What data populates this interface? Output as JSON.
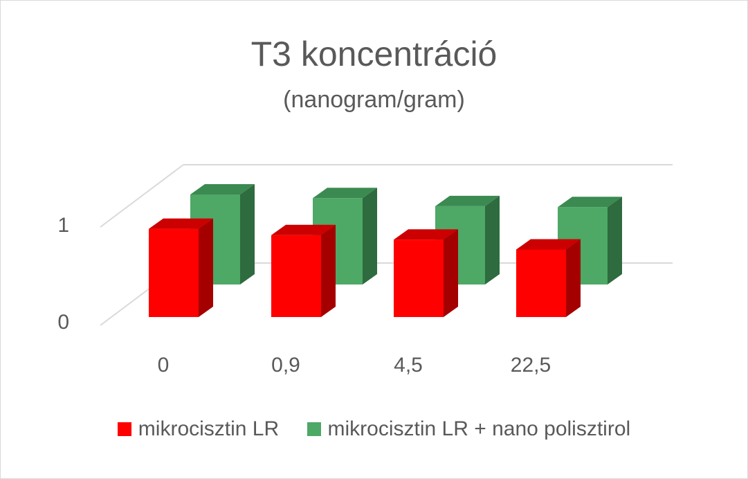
{
  "chart_data": {
    "type": "bar",
    "title": "T3 koncentráció",
    "subtitle": "(nanogram/gram)",
    "categories": [
      "0",
      "0,9",
      "4,5",
      "22,5"
    ],
    "yticks": [
      "0",
      "1"
    ],
    "ylim": [
      0,
      1
    ],
    "grid": true,
    "legend_position": "bottom",
    "series": [
      {
        "name": "mikrocisztin LR",
        "values": [
          0.98,
          0.91,
          0.86,
          0.75
        ],
        "color": "#ff0000",
        "top_color": "#cc0000",
        "side_color": "#a50000"
      },
      {
        "name": "mikrocisztin LR + nano polisztirol",
        "values": [
          1.0,
          0.96,
          0.87,
          0.86
        ],
        "color": "#4ea866",
        "top_color": "#3b8a51",
        "side_color": "#2e6b3e"
      }
    ]
  }
}
